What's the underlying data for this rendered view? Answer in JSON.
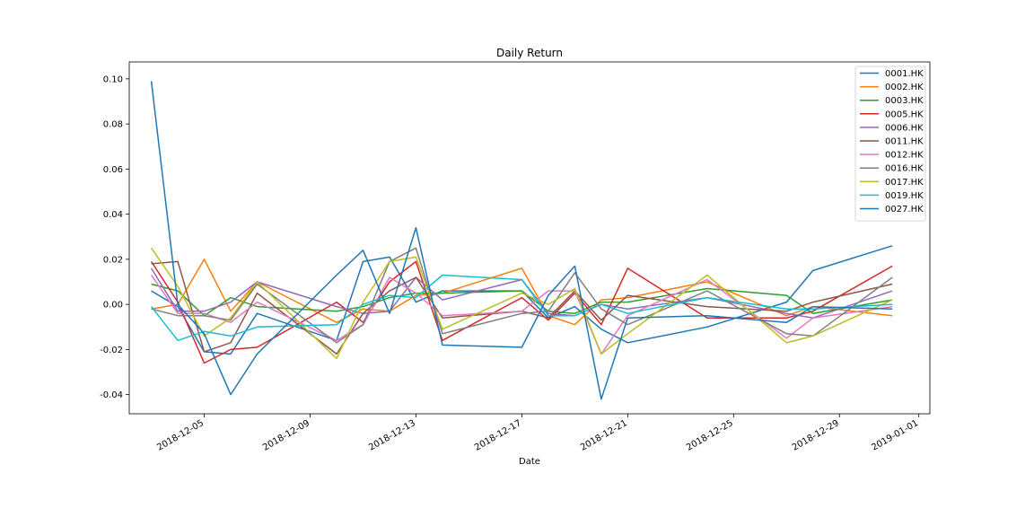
{
  "chart_data": {
    "type": "line",
    "title": "Daily Return",
    "xlabel": "Date",
    "ylabel": "",
    "x_tick_labels": [
      "2018-12-05",
      "2018-12-09",
      "2018-12-13",
      "2018-12-17",
      "2018-12-21",
      "2018-12-25",
      "2018-12-29",
      "2019-01-01"
    ],
    "y_tick_labels": [
      "-0.04",
      "-0.02",
      "0.00",
      "0.02",
      "0.04",
      "0.06",
      "0.08",
      "0.10"
    ],
    "ylim": [
      -0.0485,
      0.1075
    ],
    "xlim": [
      "2018-12-02T04:00",
      "2019-01-01T10:00"
    ],
    "grid": false,
    "legend_position": "top-right",
    "x": [
      "2018-12-03",
      "2018-12-04",
      "2018-12-05",
      "2018-12-06",
      "2018-12-07",
      "2018-12-10",
      "2018-12-11",
      "2018-12-12",
      "2018-12-13",
      "2018-12-14",
      "2018-12-17",
      "2018-12-18",
      "2018-12-19",
      "2018-12-20",
      "2018-12-21",
      "2018-12-24",
      "2018-12-27",
      "2018-12-28",
      "2018-12-31"
    ],
    "series": [
      {
        "name": "0001.HK",
        "color": "#1f77b4",
        "values": [
          0.006,
          -0.001,
          -0.021,
          -0.022,
          -0.004,
          -0.016,
          0.019,
          0.021,
          0.001,
          0.006,
          0.006,
          -0.006,
          -0.001,
          -0.011,
          -0.017,
          -0.01,
          0.001,
          0.015,
          0.026
        ]
      },
      {
        "name": "0002.HK",
        "color": "#ff7f0e",
        "values": [
          -0.002,
          0.0,
          0.02,
          -0.003,
          0.01,
          -0.008,
          -0.002,
          -0.003,
          0.004,
          0.005,
          0.016,
          -0.005,
          -0.009,
          0.002,
          0.003,
          0.01,
          -0.005,
          -0.001,
          -0.005
        ]
      },
      {
        "name": "0003.HK",
        "color": "#2ca02c",
        "values": [
          0.009,
          0.006,
          -0.005,
          0.003,
          -0.001,
          -0.003,
          -0.001,
          0.003,
          0.005,
          0.005,
          0.006,
          -0.003,
          -0.004,
          0.001,
          0.001,
          0.007,
          0.004,
          -0.004,
          0.002
        ]
      },
      {
        "name": "0005.HK",
        "color": "#d62728",
        "values": [
          0.019,
          0.001,
          -0.026,
          -0.02,
          -0.019,
          0.001,
          -0.008,
          0.01,
          0.019,
          -0.016,
          0.003,
          -0.007,
          0.005,
          -0.009,
          0.016,
          -0.006,
          -0.006,
          -0.003,
          0.017
        ]
      },
      {
        "name": "0006.HK",
        "color": "#9467bd",
        "values": [
          0.016,
          -0.003,
          -0.003,
          0.001,
          0.01,
          -0.001,
          -0.004,
          -0.003,
          0.012,
          0.002,
          0.011,
          -0.004,
          -0.005,
          0.0,
          -0.002,
          0.003,
          -0.004,
          -0.006,
          0.006
        ]
      },
      {
        "name": "0011.HK",
        "color": "#8c564b",
        "values": [
          0.018,
          0.019,
          -0.021,
          -0.017,
          0.005,
          -0.022,
          -0.004,
          0.006,
          0.012,
          -0.006,
          -0.003,
          -0.006,
          0.006,
          -0.007,
          0.004,
          -0.001,
          -0.003,
          0.001,
          0.009
        ]
      },
      {
        "name": "0012.HK",
        "color": "#e377c2",
        "values": [
          0.013,
          -0.004,
          -0.004,
          -0.008,
          0.001,
          -0.016,
          -0.009,
          0.012,
          0.005,
          -0.005,
          -0.003,
          0.006,
          0.006,
          -0.022,
          -0.005,
          0.011,
          -0.015,
          -0.006,
          -0.001
        ]
      },
      {
        "name": "0016.HK",
        "color": "#7f7f7f",
        "values": [
          -0.002,
          -0.005,
          -0.005,
          -0.007,
          0.009,
          -0.017,
          -0.009,
          0.019,
          0.025,
          -0.013,
          -0.004,
          -0.003,
          0.014,
          -0.002,
          -0.009,
          0.006,
          -0.013,
          -0.014,
          0.012
        ]
      },
      {
        "name": "0017.HK",
        "color": "#bcbd22",
        "values": [
          0.025,
          0.008,
          -0.014,
          -0.006,
          0.01,
          -0.024,
          0.001,
          0.019,
          0.021,
          -0.011,
          0.005,
          0.0,
          0.007,
          -0.022,
          -0.013,
          0.013,
          -0.017,
          -0.014,
          0.002
        ]
      },
      {
        "name": "0019.HK",
        "color": "#17becf",
        "values": [
          -0.001,
          -0.016,
          -0.012,
          -0.014,
          -0.01,
          -0.009,
          0.0,
          0.004,
          0.003,
          0.013,
          0.011,
          -0.005,
          -0.005,
          0.0,
          -0.004,
          0.003,
          -0.002,
          -0.002,
          0.0
        ]
      },
      {
        "name": "0027.HK",
        "color": "#1f77b4",
        "values": [
          0.099,
          0.0,
          -0.013,
          -0.04,
          -0.022,
          0.013,
          0.024,
          -0.004,
          0.034,
          -0.018,
          -0.019,
          0.004,
          0.017,
          -0.042,
          -0.006,
          -0.005,
          -0.008,
          -0.001,
          -0.002
        ]
      }
    ]
  }
}
